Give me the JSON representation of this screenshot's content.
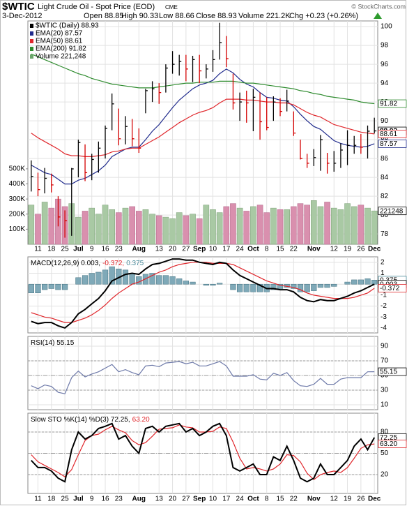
{
  "header": {
    "symbol": "$WTIC",
    "name": "Light Crude Oil - Spot Price (EOD)",
    "exchange": "CME",
    "copyright": "© StockCharts.com",
    "date": "3-Dec-2012",
    "stats": [
      "Open 88.85",
      "High 90.33",
      "Low 88.66",
      "Close 88.93",
      "Volume 221.2K",
      "Chg +0.23 (+0.26%)"
    ]
  },
  "chart_data": [
    {
      "type": "ohlc",
      "categories": [
        null,
        "11",
        null,
        "18",
        null,
        "25",
        null,
        "Jul",
        null,
        "9",
        null,
        "16",
        null,
        "23",
        null,
        null,
        "Aug",
        null,
        null,
        "13",
        null,
        "20",
        null,
        "27",
        null,
        "Sep",
        null,
        "10",
        null,
        "17",
        null,
        "24",
        null,
        "Oct",
        null,
        "8",
        null,
        "15",
        null,
        "22",
        null,
        null,
        "Nov",
        null,
        null,
        "12",
        null,
        "19",
        null,
        "26",
        null,
        "Dec"
      ],
      "ylim": [
        76.9,
        100.6
      ],
      "yticks": [
        78,
        80,
        82,
        84,
        86,
        88,
        90,
        92,
        94,
        96,
        98,
        100
      ],
      "y2lim": [
        0,
        1480000
      ],
      "y2ticks": [
        {
          "value": 100000,
          "label": "100K"
        },
        {
          "value": 200000,
          "label": "200K"
        },
        {
          "value": 300000,
          "label": "300K"
        },
        {
          "value": 400000,
          "label": "400K"
        },
        {
          "value": 500000,
          "label": "500K"
        }
      ],
      "grid": true,
      "series": [
        {
          "name": "$WTIC (Daily) 88.93",
          "type": "ohlc",
          "color": "#000000",
          "up_color": "#000000",
          "down_color": "#d40000",
          "high": [
            85.8,
            84.5,
            85.0,
            84.4,
            82.0,
            80.5,
            85.0,
            88.0,
            87.5,
            86.5,
            87.8,
            89.5,
            92.9,
            91.3,
            90.5,
            90.2,
            89.2,
            93.4,
            94.2,
            94.0,
            96.0,
            97.4,
            97.0,
            97.0,
            96.9,
            97.0,
            96.0,
            97.5,
            100.4,
            99.0,
            95.0,
            93.0,
            93.2,
            93.4,
            93.0,
            92.5,
            92.6,
            92.4,
            93.3,
            91.0,
            88.0,
            86.5,
            87.0,
            88.5,
            86.6,
            86.8,
            87.6,
            89.0,
            88.4,
            88.6,
            89.5,
            90.33
          ],
          "low": [
            82.5,
            82.0,
            82.3,
            82.4,
            78.8,
            77.6,
            77.8,
            84.0,
            83.6,
            83.7,
            84.5,
            86.0,
            89.0,
            87.4,
            87.5,
            87.3,
            86.6,
            90.8,
            92.0,
            91.8,
            93.0,
            95.0,
            94.8,
            94.2,
            94.1,
            94.0,
            94.5,
            95.2,
            96.5,
            95.7,
            91.2,
            90.0,
            89.8,
            88.9,
            88.0,
            89.0,
            90.0,
            90.5,
            91.0,
            88.4,
            85.9,
            85.0,
            85.2,
            84.7,
            84.4,
            84.6,
            85.0,
            85.3,
            86.5,
            86.5,
            86.0,
            88.66
          ],
          "close": [
            84.1,
            82.7,
            83.9,
            83.2,
            79.8,
            79.4,
            84.9,
            87.7,
            84.5,
            85.9,
            87.1,
            89.2,
            91.8,
            88.1,
            89.4,
            88.1,
            87.1,
            93.2,
            93.4,
            93.0,
            95.6,
            96.0,
            96.3,
            95.5,
            96.5,
            95.3,
            95.5,
            96.5,
            98.3,
            96.6,
            91.9,
            92.0,
            91.9,
            92.5,
            89.9,
            89.3,
            92.0,
            91.0,
            92.1,
            88.7,
            86.0,
            85.5,
            86.1,
            88.0,
            85.5,
            85.5,
            86.9,
            87.4,
            87.4,
            87.2,
            88.9,
            88.93
          ]
        },
        {
          "name": "EMA(20) 87.57",
          "type": "line",
          "color": "#1f2a8c",
          "values": [
            85.3,
            84.9,
            84.5,
            84.3,
            83.8,
            83.3,
            83.3,
            83.7,
            83.9,
            84.3,
            84.7,
            85.3,
            86.2,
            86.6,
            87.0,
            87.2,
            87.2,
            88.0,
            88.9,
            89.6,
            90.5,
            91.4,
            92.2,
            92.8,
            93.4,
            93.8,
            94.0,
            94.3,
            95.0,
            95.5,
            95.1,
            94.4,
            93.9,
            93.6,
            93.0,
            92.5,
            92.4,
            92.2,
            92.1,
            91.5,
            90.7,
            90.0,
            89.4,
            89.1,
            88.5,
            87.9,
            87.6,
            87.4,
            87.3,
            87.2,
            87.3,
            87.57
          ]
        },
        {
          "name": "EMA(50) 88.61",
          "type": "line",
          "color": "#e0262b",
          "values": [
            88.7,
            88.2,
            87.8,
            87.4,
            87.0,
            86.5,
            86.3,
            86.3,
            86.2,
            86.2,
            86.3,
            86.4,
            86.7,
            86.8,
            87.0,
            87.1,
            87.1,
            87.5,
            87.9,
            88.3,
            88.8,
            89.3,
            89.8,
            90.2,
            90.6,
            90.9,
            91.1,
            91.4,
            91.9,
            92.3,
            92.3,
            92.3,
            92.2,
            92.2,
            92.1,
            92.0,
            92.0,
            91.9,
            91.9,
            91.7,
            91.3,
            90.9,
            90.6,
            90.4,
            90.0,
            89.6,
            89.4,
            89.2,
            89.0,
            88.8,
            88.7,
            88.61
          ]
        },
        {
          "name": "EMA(200) 91.82",
          "type": "line",
          "color": "#2e8b2e",
          "values": [
            97.1,
            96.8,
            96.5,
            96.2,
            95.9,
            95.6,
            95.3,
            95.0,
            94.8,
            94.5,
            94.3,
            94.1,
            93.9,
            93.8,
            93.7,
            93.6,
            93.5,
            93.5,
            93.5,
            93.6,
            93.7,
            93.8,
            93.9,
            94.0,
            94.0,
            94.1,
            94.1,
            94.1,
            94.2,
            94.2,
            94.2,
            94.1,
            94.0,
            94.0,
            93.9,
            93.8,
            93.7,
            93.6,
            93.5,
            93.4,
            93.2,
            93.1,
            92.9,
            92.8,
            92.6,
            92.5,
            92.4,
            92.3,
            92.2,
            92.0,
            91.9,
            91.82
          ]
        },
        {
          "name": "Volume 221,248",
          "type": "volume",
          "axis": "y2",
          "color": "#6aa66a",
          "up_color": "#a9c9a4",
          "down_color": "#d990ae",
          "values": [
            260000,
            200000,
            280000,
            240000,
            300000,
            250000,
            270000,
            180000,
            220000,
            240000,
            200000,
            260000,
            230000,
            210000,
            240000,
            250000,
            220000,
            230000,
            200000,
            190000,
            180000,
            170000,
            210000,
            190000,
            200000,
            170000,
            260000,
            230000,
            210000,
            250000,
            270000,
            240000,
            220000,
            250000,
            260000,
            210000,
            240000,
            230000,
            230000,
            250000,
            270000,
            260000,
            290000,
            250000,
            280000,
            240000,
            230000,
            270000,
            250000,
            260000,
            240000,
            221248
          ]
        }
      ],
      "tags": [
        {
          "value": 91.82,
          "label": "91.82",
          "color": "#2e8b2e"
        },
        {
          "value": 88.93,
          "label": "88.93",
          "color": "#000000"
        },
        {
          "value": 88.61,
          "label": "88.61",
          "color": "#e0262b"
        },
        {
          "value": 87.57,
          "label": "87.57",
          "color": "#1f2a8c"
        },
        {
          "value": 221248,
          "label": "221248",
          "color": "#000000",
          "axis": "y2"
        }
      ]
    },
    {
      "type": "line",
      "ylim": [
        -4.45,
        2.5
      ],
      "yticks": [
        -4,
        -3,
        -2,
        -1,
        0,
        1,
        2
      ],
      "grid": true,
      "legend": [
        {
          "text": "MACD(12,26,9) 0.003,",
          "color": "#000000"
        },
        {
          "text": "-0.372,",
          "color": "#e0262b"
        },
        {
          "text": "0.375",
          "color": "#4a8a9a"
        }
      ],
      "series": [
        {
          "type": "bar",
          "color": "#7fa9b8",
          "values": [
            -0.8,
            -0.8,
            -0.5,
            -0.4,
            -0.5,
            -0.5,
            0.0,
            0.6,
            0.8,
            1.0,
            1.1,
            1.3,
            1.6,
            1.4,
            1.3,
            1.0,
            0.7,
            0.9,
            1.0,
            0.8,
            0.8,
            0.7,
            0.5,
            0.3,
            0.2,
            0.0,
            -0.1,
            -0.1,
            0.1,
            0.0,
            -0.5,
            -0.7,
            -0.7,
            -0.7,
            -0.7,
            -0.7,
            -0.5,
            -0.4,
            -0.3,
            -0.4,
            -0.7,
            -0.7,
            -0.6,
            -0.3,
            -0.3,
            -0.2,
            0.0,
            0.2,
            0.4,
            0.4,
            0.5,
            0.375
          ]
        },
        {
          "type": "line",
          "color": "#e0262b",
          "values": [
            -2.6,
            -2.8,
            -3.0,
            -3.1,
            -3.3,
            -3.5,
            -3.5,
            -3.3,
            -3.1,
            -2.8,
            -2.4,
            -1.9,
            -1.3,
            -0.8,
            -0.4,
            0.0,
            0.2,
            0.5,
            0.8,
            1.1,
            1.3,
            1.6,
            1.8,
            1.9,
            2.0,
            2.0,
            2.0,
            1.9,
            1.9,
            1.9,
            1.8,
            1.5,
            1.2,
            0.9,
            0.6,
            0.3,
            0.1,
            -0.1,
            -0.2,
            -0.3,
            -0.5,
            -0.8,
            -1.0,
            -1.1,
            -1.2,
            -1.3,
            -1.3,
            -1.3,
            -1.2,
            -1.0,
            -0.8,
            -0.372
          ]
        },
        {
          "type": "line",
          "color": "#000000",
          "width": 2,
          "values": [
            -3.4,
            -3.6,
            -3.5,
            -3.5,
            -3.8,
            -4.0,
            -3.5,
            -2.7,
            -2.3,
            -1.8,
            -1.3,
            -0.6,
            0.3,
            0.6,
            0.9,
            1.0,
            0.9,
            1.4,
            1.8,
            1.9,
            2.1,
            2.3,
            2.3,
            2.2,
            2.2,
            2.0,
            1.9,
            1.8,
            2.0,
            1.9,
            1.3,
            0.8,
            0.5,
            0.2,
            -0.1,
            -0.4,
            -0.4,
            -0.5,
            -0.5,
            -0.7,
            -1.2,
            -1.5,
            -1.6,
            -1.4,
            -1.5,
            -1.5,
            -1.3,
            -1.1,
            -0.8,
            -0.6,
            -0.3,
            0.003
          ]
        }
      ],
      "tags": [
        {
          "value": 0.375,
          "label": "0.375",
          "color": "#4a8a9a"
        },
        {
          "value": 0.003,
          "label": "0.003",
          "color": "#000000"
        },
        {
          "value": -0.372,
          "label": "-0.372",
          "color": "#e0262b"
        }
      ]
    },
    {
      "type": "line",
      "ylim": [
        3.3,
        103.3
      ],
      "yticks": [
        10,
        30,
        50,
        70,
        90
      ],
      "grid": true,
      "guides": [
        70,
        50,
        30
      ],
      "legend": [
        {
          "text": "RSI(14) 55.15",
          "color": "#000000"
        }
      ],
      "series": [
        {
          "type": "line",
          "color": "#6c78a8",
          "values": [
            36,
            32,
            37,
            35,
            27,
            25,
            47,
            56,
            48,
            52,
            55,
            60,
            65,
            55,
            58,
            54,
            51,
            63,
            64,
            62,
            67,
            68,
            69,
            66,
            68,
            63,
            63,
            66,
            69,
            63,
            49,
            49,
            49,
            51,
            45,
            44,
            53,
            50,
            54,
            43,
            36,
            35,
            38,
            46,
            38,
            38,
            45,
            47,
            47,
            47,
            55,
            55.15
          ]
        }
      ],
      "tags": [
        {
          "value": 55.15,
          "label": "55.15",
          "color": "#000000"
        }
      ]
    },
    {
      "type": "line",
      "ylim": [
        -6.5,
        106.5
      ],
      "yticks": [
        20,
        50,
        80
      ],
      "grid": true,
      "guides": [
        80,
        50,
        20
      ],
      "legend": [
        {
          "text": "Slow STO %K(14) %D(3) 72.25,",
          "color": "#000000"
        },
        {
          "text": "63.20",
          "color": "#e0262b"
        }
      ],
      "series": [
        {
          "type": "line",
          "color": "#e0262b",
          "values": [
            48,
            38,
            33,
            28,
            23,
            17,
            27,
            48,
            68,
            75,
            77,
            83,
            88,
            83,
            79,
            68,
            62,
            65,
            74,
            84,
            85,
            86,
            90,
            87,
            86,
            80,
            80,
            81,
            87,
            85,
            66,
            43,
            28,
            30,
            28,
            25,
            28,
            35,
            48,
            47,
            38,
            22,
            13,
            20,
            23,
            25,
            23,
            30,
            43,
            57,
            62,
            63.2
          ]
        },
        {
          "type": "line",
          "color": "#000000",
          "width": 2,
          "values": [
            40,
            30,
            30,
            25,
            15,
            10,
            55,
            80,
            70,
            75,
            85,
            88,
            92,
            70,
            75,
            60,
            50,
            85,
            88,
            80,
            88,
            90,
            92,
            80,
            85,
            75,
            80,
            88,
            92,
            75,
            30,
            25,
            30,
            35,
            20,
            20,
            45,
            40,
            60,
            40,
            15,
            10,
            15,
            35,
            20,
            20,
            30,
            40,
            60,
            70,
            55,
            72.25
          ]
        }
      ],
      "tags": [
        {
          "value": 72.25,
          "label": "72.25",
          "color": "#000000"
        },
        {
          "value": 63.2,
          "label": "63.20",
          "color": "#e0262b"
        }
      ]
    }
  ]
}
